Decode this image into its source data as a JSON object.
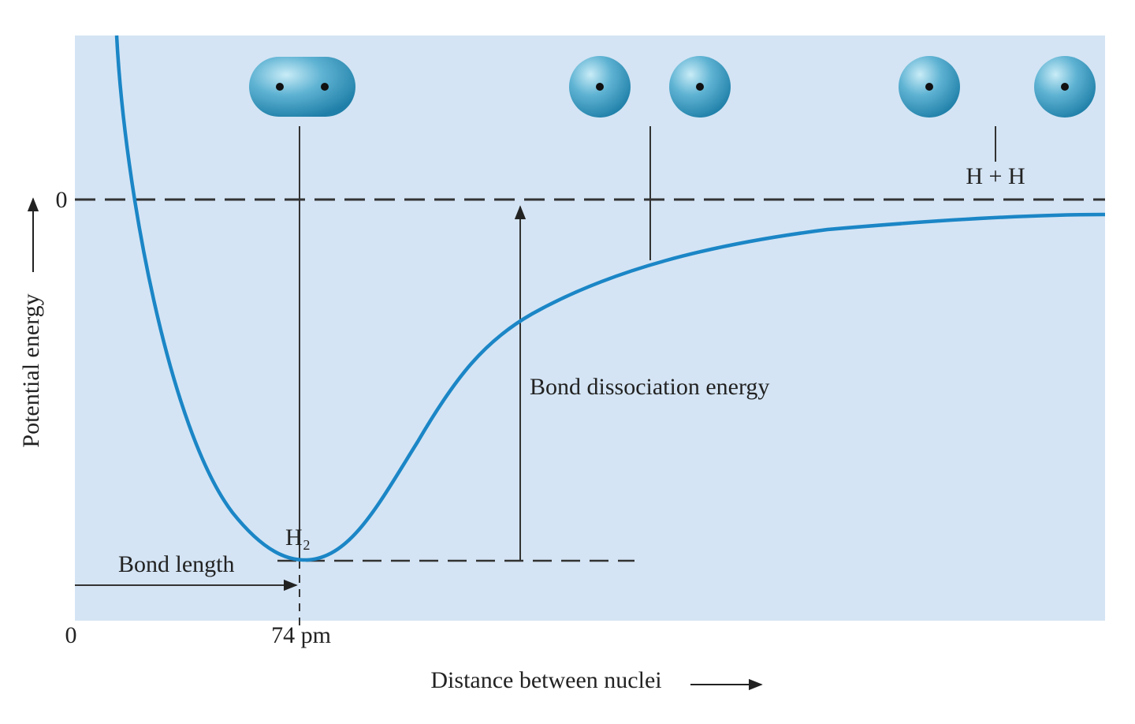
{
  "y_axis": {
    "label": "Potential energy",
    "zero_label": "0"
  },
  "x_axis": {
    "label": "Distance between nuclei",
    "zero_label": "0",
    "bond_length_tick": "74 pm"
  },
  "annotations": {
    "bond_length": "Bond length",
    "molecule": "H₂",
    "bond_dissociation_energy": "Bond dissociation energy",
    "separated_atoms": "H + H"
  }
}
